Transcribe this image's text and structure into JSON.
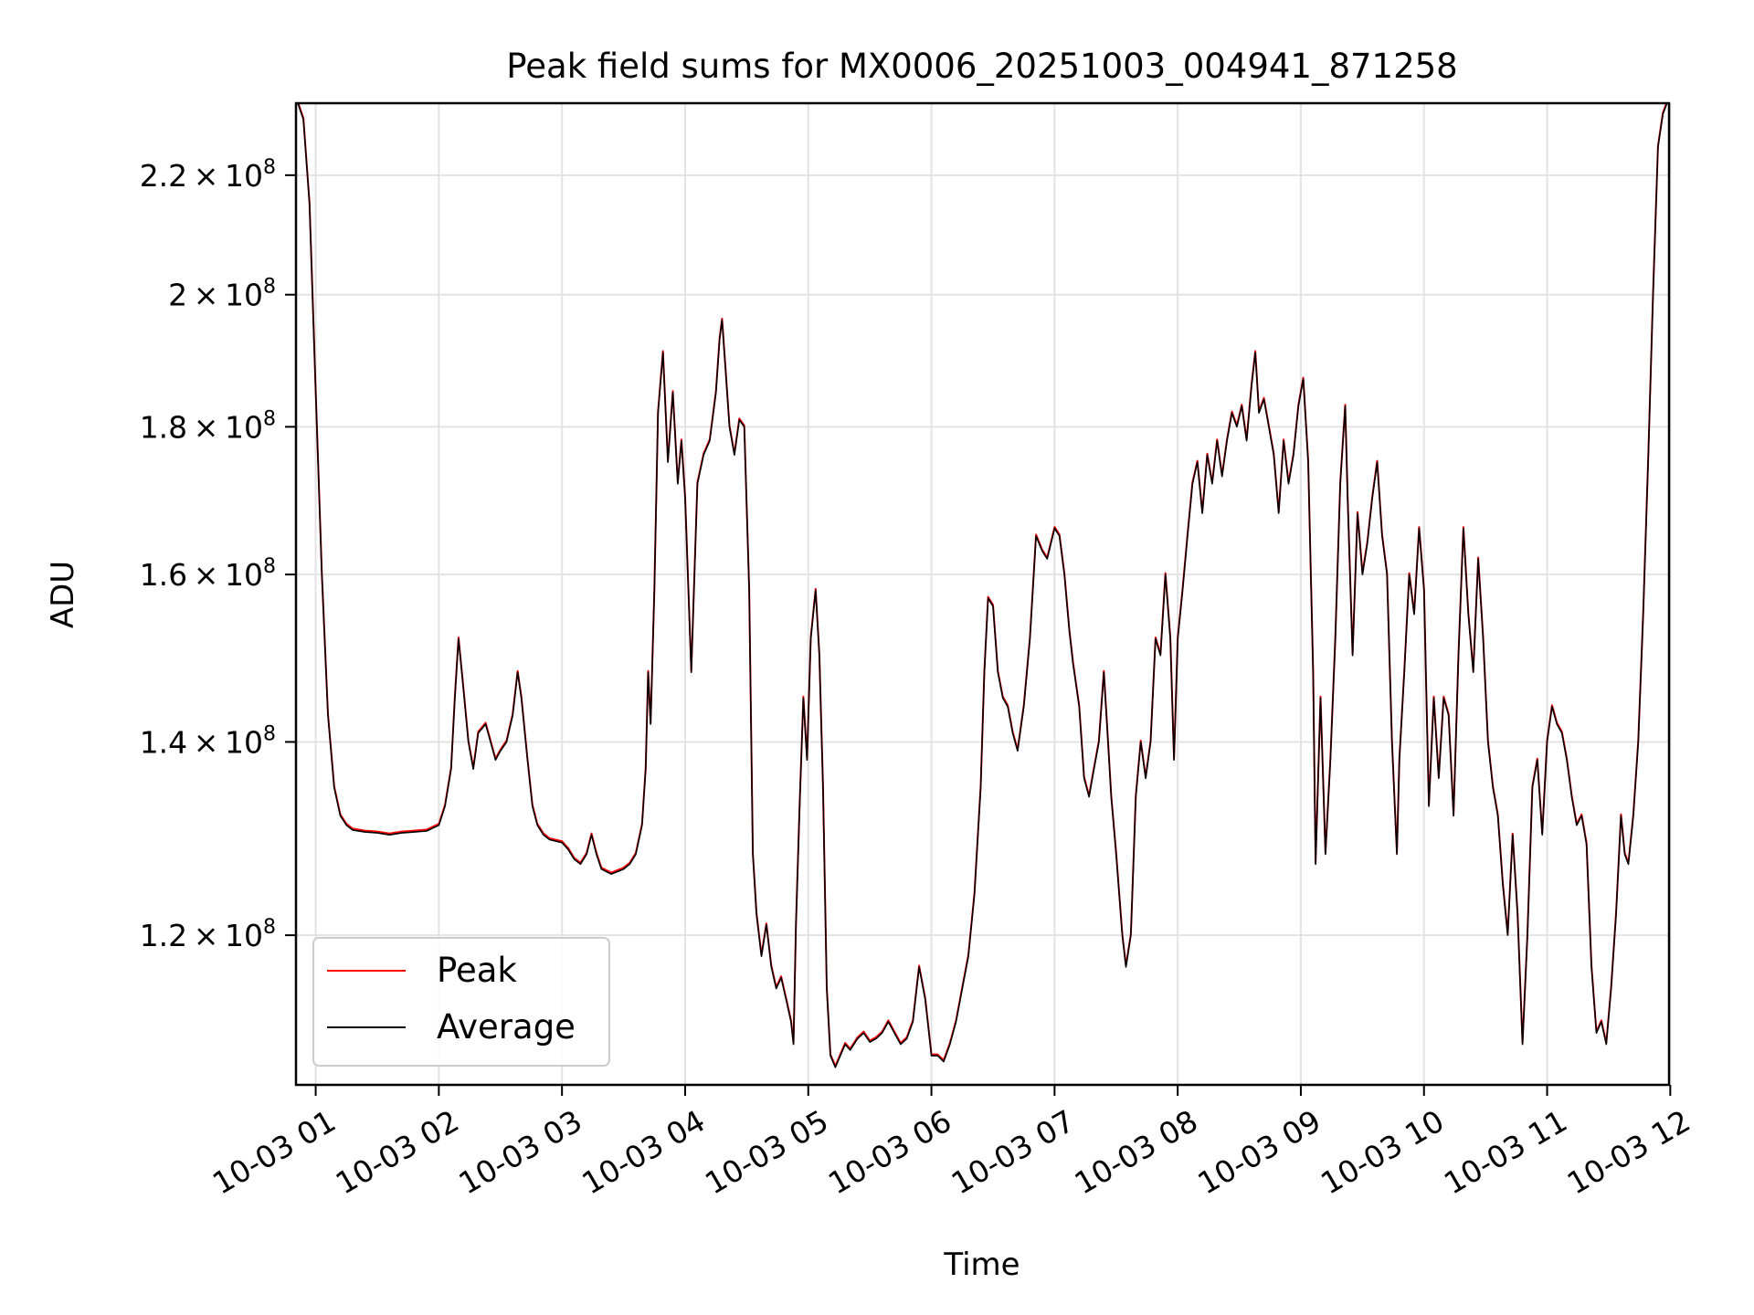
{
  "chart_data": {
    "type": "line",
    "title": "Peak field sums for MX0006_20251003_004941_871258",
    "xlabel": "Time",
    "ylabel": "ADU",
    "y_scale": "log",
    "ylim": [
      106500000,
      233000000
    ],
    "xlim_hours": [
      0.84,
      11.99
    ],
    "grid": true,
    "legend_position": "lower-left",
    "y_ticks": [
      {
        "value": 120000000,
        "mantissa": "1.2",
        "exponent": "8"
      },
      {
        "value": 140000000,
        "mantissa": "1.4",
        "exponent": "8"
      },
      {
        "value": 160000000,
        "mantissa": "1.6",
        "exponent": "8"
      },
      {
        "value": 180000000,
        "mantissa": "1.8",
        "exponent": "8"
      },
      {
        "value": 200000000,
        "mantissa": "2",
        "exponent": "8"
      },
      {
        "value": 220000000,
        "mantissa": "2.2",
        "exponent": "8"
      }
    ],
    "x_ticks": [
      {
        "hour": 1,
        "label": "10-03 01"
      },
      {
        "hour": 2,
        "label": "10-03 02"
      },
      {
        "hour": 3,
        "label": "10-03 03"
      },
      {
        "hour": 4,
        "label": "10-03 04"
      },
      {
        "hour": 5,
        "label": "10-03 05"
      },
      {
        "hour": 6,
        "label": "10-03 06"
      },
      {
        "hour": 7,
        "label": "10-03 07"
      },
      {
        "hour": 8,
        "label": "10-03 08"
      },
      {
        "hour": 9,
        "label": "10-03 09"
      },
      {
        "hour": 10,
        "label": "10-03 10"
      },
      {
        "hour": 11,
        "label": "10-03 11"
      },
      {
        "hour": 12,
        "label": "10-03 12"
      }
    ],
    "series": [
      {
        "name": "Peak",
        "color": "#ff0000"
      },
      {
        "name": "Average",
        "color": "#000000"
      }
    ],
    "average_points": [
      [
        0.84,
        234
      ],
      [
        0.9,
        230
      ],
      [
        0.95,
        215
      ],
      [
        1.0,
        185
      ],
      [
        1.05,
        160
      ],
      [
        1.1,
        143
      ],
      [
        1.15,
        135
      ],
      [
        1.2,
        132
      ],
      [
        1.25,
        131
      ],
      [
        1.3,
        130.5
      ],
      [
        1.4,
        130.3
      ],
      [
        1.5,
        130.2
      ],
      [
        1.6,
        130
      ],
      [
        1.7,
        130.2
      ],
      [
        1.8,
        130.3
      ],
      [
        1.9,
        130.4
      ],
      [
        2.0,
        131
      ],
      [
        2.05,
        133
      ],
      [
        2.1,
        137
      ],
      [
        2.13,
        145
      ],
      [
        2.16,
        152
      ],
      [
        2.2,
        146
      ],
      [
        2.24,
        140
      ],
      [
        2.28,
        137
      ],
      [
        2.32,
        141
      ],
      [
        2.38,
        142
      ],
      [
        2.42,
        140
      ],
      [
        2.46,
        138
      ],
      [
        2.5,
        139
      ],
      [
        2.55,
        140
      ],
      [
        2.6,
        143
      ],
      [
        2.64,
        148
      ],
      [
        2.67,
        145
      ],
      [
        2.72,
        138
      ],
      [
        2.76,
        133
      ],
      [
        2.8,
        131
      ],
      [
        2.85,
        130
      ],
      [
        2.9,
        129.5
      ],
      [
        3.0,
        129.2
      ],
      [
        3.05,
        128.5
      ],
      [
        3.1,
        127.5
      ],
      [
        3.15,
        127
      ],
      [
        3.2,
        128
      ],
      [
        3.24,
        130
      ],
      [
        3.28,
        128
      ],
      [
        3.32,
        126.5
      ],
      [
        3.4,
        126
      ],
      [
        3.5,
        126.5
      ],
      [
        3.55,
        127
      ],
      [
        3.6,
        128
      ],
      [
        3.65,
        131
      ],
      [
        3.68,
        137
      ],
      [
        3.7,
        148
      ],
      [
        3.72,
        142
      ],
      [
        3.75,
        158
      ],
      [
        3.78,
        182
      ],
      [
        3.82,
        191
      ],
      [
        3.86,
        175
      ],
      [
        3.9,
        185
      ],
      [
        3.94,
        172
      ],
      [
        3.97,
        178
      ],
      [
        4.0,
        170
      ],
      [
        4.05,
        148
      ],
      [
        4.1,
        172
      ],
      [
        4.15,
        176
      ],
      [
        4.2,
        178
      ],
      [
        4.25,
        185
      ],
      [
        4.28,
        193
      ],
      [
        4.3,
        196
      ],
      [
        4.33,
        188
      ],
      [
        4.36,
        180
      ],
      [
        4.4,
        176
      ],
      [
        4.44,
        181
      ],
      [
        4.48,
        180
      ],
      [
        4.52,
        158
      ],
      [
        4.55,
        128
      ],
      [
        4.58,
        122
      ],
      [
        4.62,
        118
      ],
      [
        4.66,
        121
      ],
      [
        4.7,
        117
      ],
      [
        4.74,
        115
      ],
      [
        4.78,
        116
      ],
      [
        4.82,
        114
      ],
      [
        4.86,
        112
      ],
      [
        4.88,
        110
      ],
      [
        4.9,
        121
      ],
      [
        4.93,
        133
      ],
      [
        4.96,
        145
      ],
      [
        4.99,
        138
      ],
      [
        5.02,
        152
      ],
      [
        5.06,
        158
      ],
      [
        5.09,
        150
      ],
      [
        5.12,
        135
      ],
      [
        5.15,
        115
      ],
      [
        5.18,
        109
      ],
      [
        5.22,
        108
      ],
      [
        5.26,
        109
      ],
      [
        5.3,
        110
      ],
      [
        5.34,
        109.5
      ],
      [
        5.4,
        110.5
      ],
      [
        5.45,
        111
      ],
      [
        5.5,
        110.2
      ],
      [
        5.55,
        110.5
      ],
      [
        5.6,
        111
      ],
      [
        5.65,
        112
      ],
      [
        5.7,
        111
      ],
      [
        5.75,
        110
      ],
      [
        5.8,
        110.5
      ],
      [
        5.85,
        112
      ],
      [
        5.9,
        117
      ],
      [
        5.95,
        114
      ],
      [
        6.0,
        109
      ],
      [
        6.05,
        109
      ],
      [
        6.1,
        108.5
      ],
      [
        6.15,
        110
      ],
      [
        6.2,
        112
      ],
      [
        6.3,
        118
      ],
      [
        6.35,
        124
      ],
      [
        6.4,
        135
      ],
      [
        6.43,
        148
      ],
      [
        6.46,
        157
      ],
      [
        6.5,
        156
      ],
      [
        6.54,
        148
      ],
      [
        6.58,
        145
      ],
      [
        6.62,
        144
      ],
      [
        6.66,
        141
      ],
      [
        6.7,
        139
      ],
      [
        6.75,
        144
      ],
      [
        6.8,
        152
      ],
      [
        6.85,
        165
      ],
      [
        6.9,
        163
      ],
      [
        6.94,
        162
      ],
      [
        7.0,
        166
      ],
      [
        7.04,
        165
      ],
      [
        7.08,
        160
      ],
      [
        7.12,
        153
      ],
      [
        7.15,
        149
      ],
      [
        7.2,
        144
      ],
      [
        7.24,
        136
      ],
      [
        7.28,
        134
      ],
      [
        7.32,
        137
      ],
      [
        7.36,
        140
      ],
      [
        7.4,
        148
      ],
      [
        7.43,
        141
      ],
      [
        7.46,
        134
      ],
      [
        7.5,
        128
      ],
      [
        7.55,
        120
      ],
      [
        7.58,
        117
      ],
      [
        7.62,
        120
      ],
      [
        7.66,
        134
      ],
      [
        7.7,
        140
      ],
      [
        7.74,
        136
      ],
      [
        7.78,
        140
      ],
      [
        7.82,
        152
      ],
      [
        7.86,
        150
      ],
      [
        7.9,
        160
      ],
      [
        7.94,
        152
      ],
      [
        7.97,
        138
      ],
      [
        8.0,
        152
      ],
      [
        8.04,
        158
      ],
      [
        8.08,
        165
      ],
      [
        8.12,
        172
      ],
      [
        8.16,
        175
      ],
      [
        8.2,
        168
      ],
      [
        8.24,
        176
      ],
      [
        8.28,
        172
      ],
      [
        8.32,
        178
      ],
      [
        8.36,
        173
      ],
      [
        8.4,
        178
      ],
      [
        8.44,
        182
      ],
      [
        8.48,
        180
      ],
      [
        8.52,
        183
      ],
      [
        8.56,
        178
      ],
      [
        8.6,
        186
      ],
      [
        8.63,
        191
      ],
      [
        8.66,
        182
      ],
      [
        8.7,
        184
      ],
      [
        8.74,
        180
      ],
      [
        8.78,
        176
      ],
      [
        8.82,
        168
      ],
      [
        8.86,
        178
      ],
      [
        8.9,
        172
      ],
      [
        8.94,
        176
      ],
      [
        8.98,
        183
      ],
      [
        9.02,
        187
      ],
      [
        9.06,
        175
      ],
      [
        9.1,
        148
      ],
      [
        9.12,
        127
      ],
      [
        9.16,
        145
      ],
      [
        9.2,
        128
      ],
      [
        9.24,
        138
      ],
      [
        9.28,
        152
      ],
      [
        9.32,
        172
      ],
      [
        9.36,
        183
      ],
      [
        9.38,
        170
      ],
      [
        9.42,
        150
      ],
      [
        9.46,
        168
      ],
      [
        9.5,
        160
      ],
      [
        9.54,
        164
      ],
      [
        9.58,
        170
      ],
      [
        9.62,
        175
      ],
      [
        9.66,
        165
      ],
      [
        9.7,
        160
      ],
      [
        9.74,
        140
      ],
      [
        9.78,
        128
      ],
      [
        9.8,
        138
      ],
      [
        9.84,
        148
      ],
      [
        9.88,
        160
      ],
      [
        9.92,
        155
      ],
      [
        9.96,
        166
      ],
      [
        10.0,
        158
      ],
      [
        10.04,
        133
      ],
      [
        10.08,
        145
      ],
      [
        10.12,
        136
      ],
      [
        10.16,
        145
      ],
      [
        10.2,
        143
      ],
      [
        10.24,
        132
      ],
      [
        10.28,
        150
      ],
      [
        10.32,
        166
      ],
      [
        10.36,
        155
      ],
      [
        10.4,
        148
      ],
      [
        10.44,
        162
      ],
      [
        10.48,
        152
      ],
      [
        10.52,
        140
      ],
      [
        10.56,
        135
      ],
      [
        10.6,
        132
      ],
      [
        10.64,
        125
      ],
      [
        10.68,
        120
      ],
      [
        10.72,
        130
      ],
      [
        10.76,
        122
      ],
      [
        10.8,
        110
      ],
      [
        10.84,
        120
      ],
      [
        10.88,
        135
      ],
      [
        10.92,
        138
      ],
      [
        10.96,
        130
      ],
      [
        11.0,
        140
      ],
      [
        11.04,
        144
      ],
      [
        11.08,
        142
      ],
      [
        11.12,
        141
      ],
      [
        11.16,
        138
      ],
      [
        11.2,
        134
      ],
      [
        11.24,
        131
      ],
      [
        11.28,
        132
      ],
      [
        11.32,
        129
      ],
      [
        11.36,
        117
      ],
      [
        11.4,
        111
      ],
      [
        11.44,
        112
      ],
      [
        11.48,
        110
      ],
      [
        11.52,
        115
      ],
      [
        11.56,
        122
      ],
      [
        11.6,
        132
      ],
      [
        11.63,
        128
      ],
      [
        11.66,
        127
      ],
      [
        11.7,
        132
      ],
      [
        11.74,
        140
      ],
      [
        11.78,
        155
      ],
      [
        11.82,
        175
      ],
      [
        11.86,
        200
      ],
      [
        11.9,
        225
      ],
      [
        11.94,
        231
      ],
      [
        11.99,
        234
      ]
    ]
  }
}
